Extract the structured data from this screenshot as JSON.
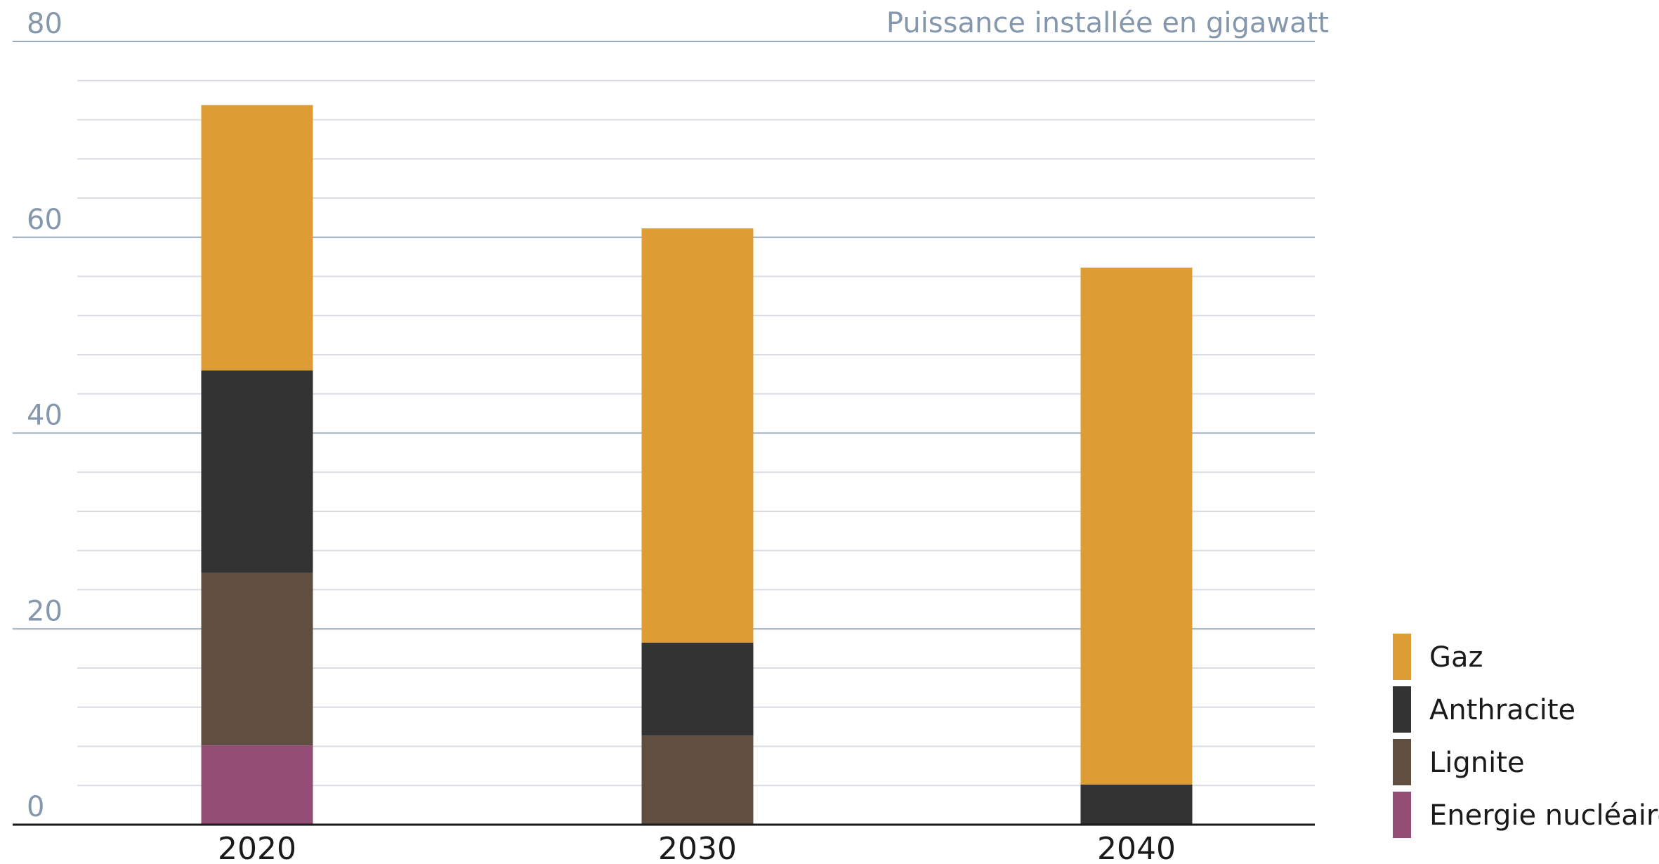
{
  "chart_data": {
    "type": "bar",
    "stacked": true,
    "title": "",
    "ylabel": "Puissance installée en gigawatt",
    "xlabel": "",
    "categories": [
      "2020",
      "2030",
      "2040"
    ],
    "ylim": [
      0,
      80
    ],
    "yticks": [
      0,
      20,
      40,
      60,
      80
    ],
    "minor_grid_step": 4,
    "grid": true,
    "legend_position": "bottom-right",
    "series": [
      {
        "name": "Energie nucléaire",
        "color": "#944d75",
        "values": [
          8.1,
          0,
          0
        ]
      },
      {
        "name": "Lignite",
        "color": "#604f40",
        "values": [
          17.6,
          9.1,
          0
        ]
      },
      {
        "name": "Anthracite",
        "color": "#333333",
        "values": [
          20.7,
          9.5,
          4.1
        ]
      },
      {
        "name": "Gaz",
        "color": "#de9c34",
        "values": [
          27.1,
          42.3,
          52.8
        ]
      }
    ],
    "legend_order": [
      "Gaz",
      "Anthracite",
      "Lignite",
      "Energie nucléaire"
    ]
  }
}
